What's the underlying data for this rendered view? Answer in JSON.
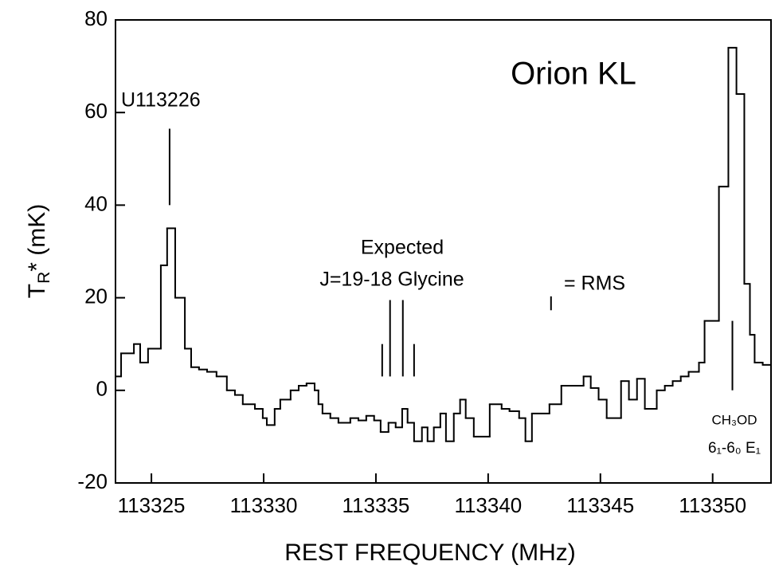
{
  "chart_data": {
    "type": "step",
    "title": "Orion KL",
    "xlabel": "REST FREQUENCY (MHz)",
    "ylabel": {
      "main": "T",
      "sub": "R",
      "rest": "* (mK)"
    },
    "xlim": [
      113323.4,
      113352.6
    ],
    "ylim": [
      -20,
      80
    ],
    "xticks": [
      113325,
      113330,
      113335,
      113340,
      113345,
      113350
    ],
    "yticks": [
      -20,
      0,
      20,
      40,
      60,
      80
    ],
    "color": "#000000",
    "x": [
      113323.4,
      113323.65,
      113324.22,
      113324.5,
      113324.85,
      113325.42,
      113325.7,
      113326.06,
      113326.49,
      113326.77,
      113327.12,
      113327.48,
      113327.9,
      113328.36,
      113328.72,
      113329.07,
      113329.61,
      113329.96,
      113330.14,
      113330.49,
      113330.74,
      113331.2,
      113331.56,
      113331.91,
      113332.27,
      113332.44,
      113332.62,
      113332.97,
      113333.33,
      113333.86,
      113334.22,
      113334.57,
      113334.92,
      113335.21,
      113335.56,
      113335.88,
      113336.17,
      113336.41,
      113336.7,
      113337.05,
      113337.3,
      113337.58,
      113337.87,
      113338.12,
      113338.47,
      113338.75,
      113339.0,
      113339.36,
      113340.07,
      113340.6,
      113340.95,
      113341.38,
      113341.66,
      113341.95,
      113342.73,
      113343.26,
      113344.25,
      113344.57,
      113344.92,
      113345.28,
      113345.92,
      113346.27,
      113346.63,
      113346.98,
      113347.51,
      113347.87,
      113348.22,
      113348.58,
      113348.93,
      113349.39,
      113349.64,
      113350.28,
      113350.7,
      113351.06,
      113351.41,
      113351.66,
      113351.87,
      113352.23
    ],
    "values": [
      3,
      8,
      10,
      6,
      9,
      27,
      35,
      20,
      9,
      5,
      4.5,
      4,
      3,
      0,
      -1,
      -3,
      -4,
      -6,
      -7.5,
      -4,
      -2,
      0,
      1,
      1.5,
      0,
      -3,
      -5,
      -6,
      -7,
      -6,
      -6.5,
      -5.5,
      -6.5,
      -9,
      -7,
      -8,
      -4,
      -7,
      -11,
      -8,
      -11,
      -8,
      -5,
      -11,
      -5,
      -2,
      -6,
      -10,
      -3,
      -4,
      -4.5,
      -6,
      -11,
      -5,
      -3,
      1,
      3,
      0.5,
      -2,
      -6,
      2,
      -2,
      2.5,
      -4,
      0,
      1,
      2,
      3,
      4,
      6,
      15,
      44,
      74,
      64,
      23,
      12,
      6,
      5.5
    ],
    "markers": [
      {
        "x": 113325.81,
        "y0": 40,
        "y1": 56.5
      },
      {
        "x": 113335.28,
        "y0": 3,
        "y1": 10
      },
      {
        "x": 113335.63,
        "y0": 3,
        "y1": 19.5
      },
      {
        "x": 113336.2,
        "y0": 3,
        "y1": 19.5
      },
      {
        "x": 113336.7,
        "y0": 3,
        "y1": 10
      },
      {
        "x": 113342.8,
        "y0": 17.3,
        "y1": 20.3
      },
      {
        "x": 113350.88,
        "y0": 0,
        "y1": 15
      }
    ],
    "annotations": [
      "U113226",
      "Expected",
      "J=19-18 Glycine",
      "= RMS",
      "CH₃OD",
      "6₁-6₀ E₁"
    ]
  }
}
